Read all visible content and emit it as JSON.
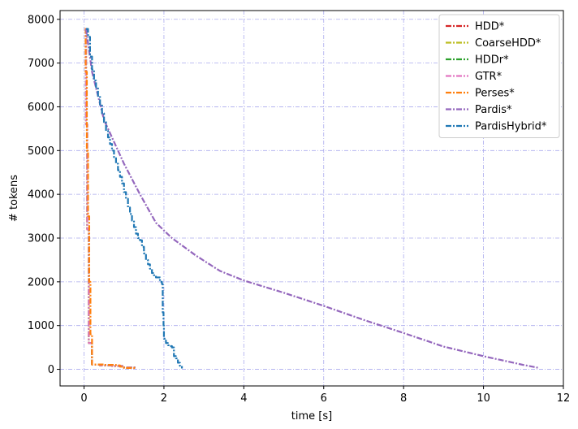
{
  "chart_data": {
    "type": "line",
    "title": "",
    "xlabel": "time [s]",
    "ylabel": "# tokens",
    "xlim": [
      -0.6,
      12
    ],
    "ylim": [
      -380,
      8200
    ],
    "xticks": [
      0,
      2,
      4,
      6,
      8,
      10,
      12
    ],
    "yticks": [
      0,
      1000,
      2000,
      3000,
      4000,
      5000,
      6000,
      7000,
      8000
    ],
    "grid": true,
    "grid_color": "#aaaaee",
    "legend_position": "top-right",
    "series": [
      {
        "name": "HDD*",
        "color": "#d62728",
        "style": "step",
        "x": [
          0.02,
          0.05,
          0.08,
          0.12,
          0.2,
          0.4,
          0.7,
          1.0,
          1.3
        ],
        "y": [
          7780,
          5600,
          3200,
          600,
          110,
          90,
          75,
          40,
          20
        ]
      },
      {
        "name": "CoarseHDD*",
        "color": "#bcbd22",
        "style": "step",
        "x": [
          0.02,
          0.05,
          0.08,
          0.12,
          0.2,
          0.4,
          0.7,
          1.0,
          1.3
        ],
        "y": [
          7780,
          5600,
          3200,
          600,
          110,
          90,
          75,
          40,
          20
        ]
      },
      {
        "name": "HDDr*",
        "color": "#2ca02c",
        "style": "step",
        "x": [
          0.02,
          0.05,
          0.08,
          0.12,
          0.2,
          0.4,
          0.7,
          1.0,
          1.3
        ],
        "y": [
          7780,
          5600,
          3200,
          600,
          110,
          90,
          75,
          40,
          20
        ]
      },
      {
        "name": "GTR*",
        "color": "#e377c2",
        "style": "step",
        "x": [
          0.02,
          0.05,
          0.08,
          0.12,
          0.2,
          0.4,
          0.7,
          1.0,
          1.3
        ],
        "y": [
          7780,
          5600,
          3200,
          600,
          110,
          90,
          75,
          40,
          20
        ]
      },
      {
        "name": "Perses*",
        "color": "#ff7f0e",
        "style": "step",
        "x": [
          0.02,
          0.04,
          0.07,
          0.1,
          0.13,
          0.16,
          0.2,
          0.5,
          0.8,
          0.9,
          1.0,
          1.3
        ],
        "y": [
          7780,
          6800,
          5000,
          3500,
          2000,
          800,
          110,
          100,
          90,
          60,
          30,
          20
        ]
      },
      {
        "name": "Pardis*",
        "color": "#9467bd",
        "style": "line",
        "x": [
          0.05,
          0.2,
          0.5,
          0.8,
          1.0,
          1.4,
          1.8,
          2.2,
          2.8,
          3.4,
          4.0,
          5.0,
          6.0,
          7.0,
          8.0,
          9.0,
          10.0,
          11.0,
          11.4
        ],
        "y": [
          7780,
          6800,
          5700,
          5100,
          4700,
          4000,
          3350,
          3000,
          2600,
          2250,
          2030,
          1750,
          1450,
          1130,
          830,
          520,
          300,
          100,
          30
        ]
      },
      {
        "name": "PardisHybrid*",
        "color": "#1f77b4",
        "style": "step",
        "x": [
          0.05,
          0.1,
          0.15,
          0.2,
          0.25,
          0.3,
          0.35,
          0.4,
          0.45,
          0.5,
          0.55,
          0.6,
          0.65,
          0.7,
          0.75,
          0.8,
          0.85,
          0.9,
          0.95,
          1.0,
          1.05,
          1.1,
          1.15,
          1.2,
          1.25,
          1.3,
          1.35,
          1.4,
          1.45,
          1.5,
          1.55,
          1.6,
          1.65,
          1.7,
          1.75,
          1.8,
          1.85,
          1.9,
          1.95,
          1.97,
          1.99,
          2.0,
          2.05,
          2.1,
          2.15,
          2.2,
          2.25,
          2.3,
          2.35,
          2.4,
          2.45
        ],
        "y": [
          7780,
          7600,
          7150,
          6850,
          6600,
          6450,
          6250,
          6050,
          5850,
          5650,
          5450,
          5300,
          5150,
          5000,
          4850,
          4700,
          4550,
          4400,
          4250,
          4050,
          3900,
          3700,
          3550,
          3400,
          3250,
          3100,
          3000,
          2950,
          2800,
          2650,
          2500,
          2400,
          2300,
          2200,
          2150,
          2100,
          2100,
          2000,
          1950,
          1300,
          1000,
          700,
          600,
          550,
          530,
          500,
          300,
          250,
          150,
          80,
          20
        ]
      }
    ]
  }
}
